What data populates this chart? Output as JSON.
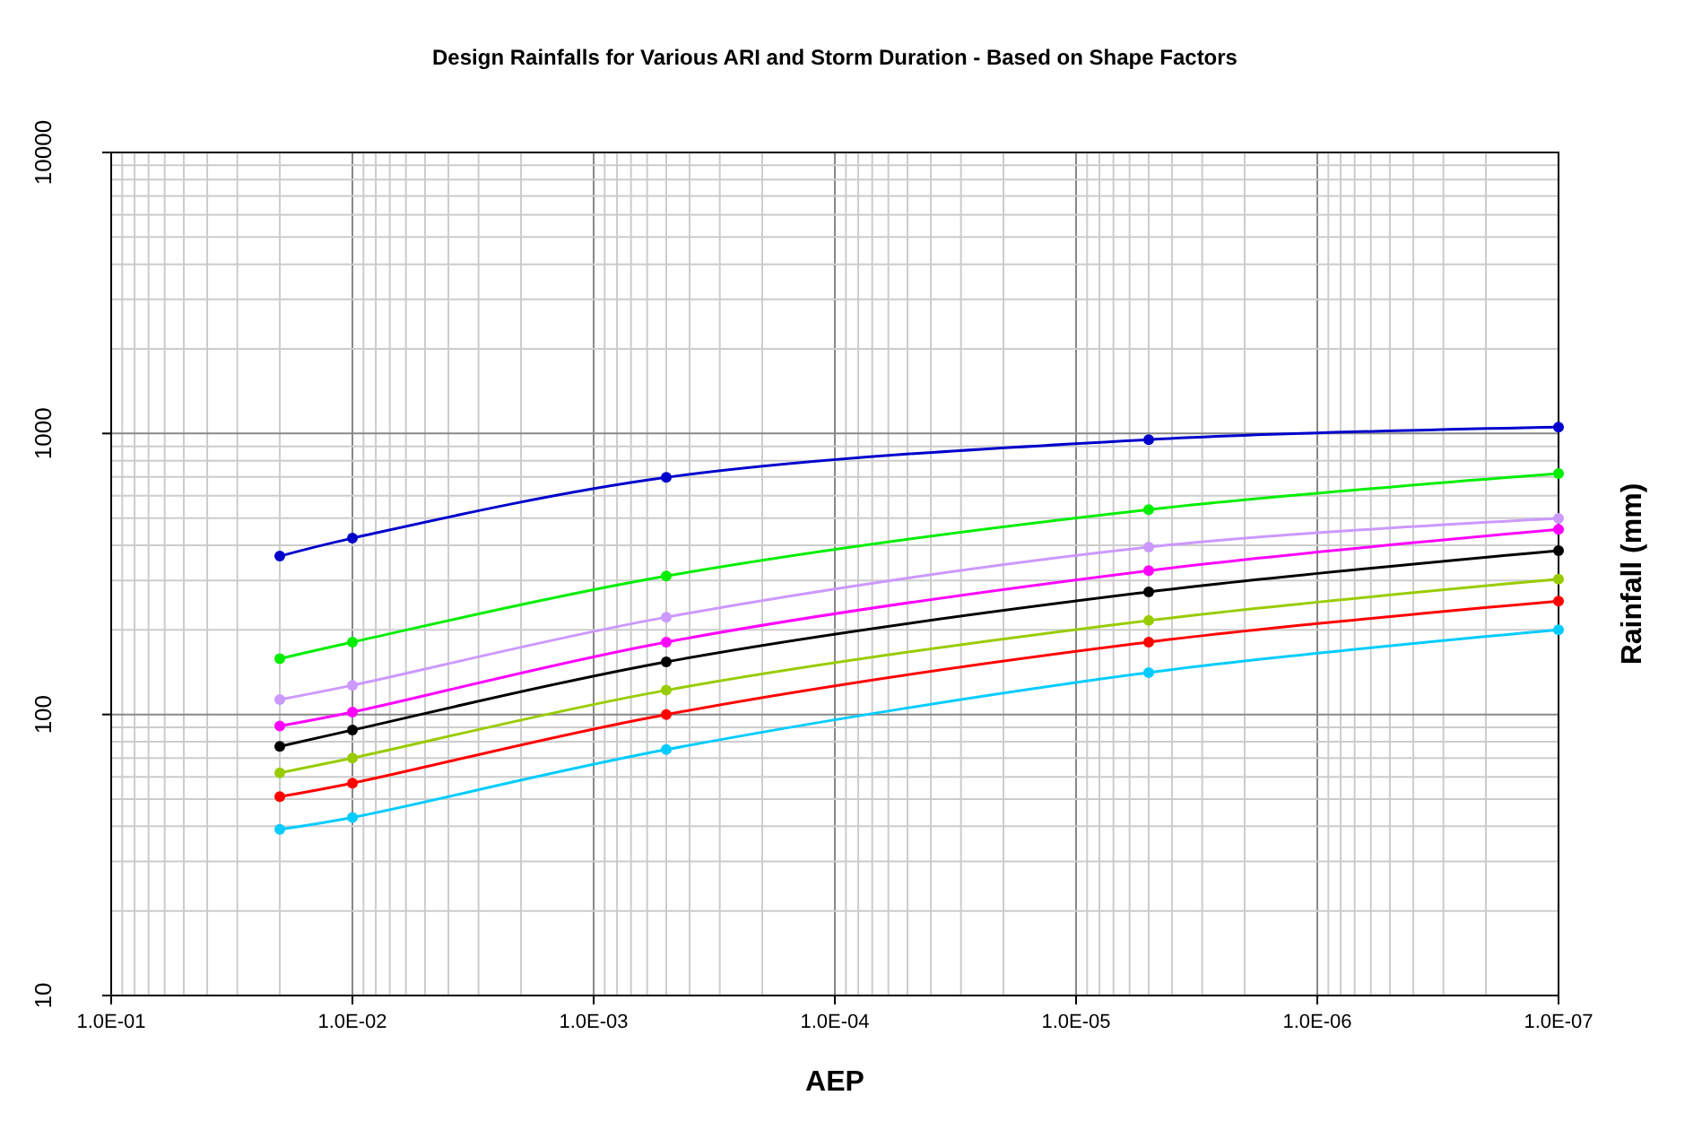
{
  "chart_data": {
    "type": "line",
    "title": "Design Rainfalls for Various ARI and Storm Duration - Based on Shape Factors",
    "xlabel": "AEP",
    "ylabel": "Rainfall (mm)",
    "log": "xy",
    "grid": true,
    "marker": "circle",
    "line_style": "solid",
    "x": [
      0.02,
      0.01,
      0.0005,
      5e-06,
      1e-07
    ],
    "xlim": [
      0.1,
      1e-07
    ],
    "ylim": [
      10,
      10000
    ],
    "xticks": [
      {
        "value": 0.1,
        "label": "1.0E-01"
      },
      {
        "value": 0.01,
        "label": "1.0E-02"
      },
      {
        "value": 0.001,
        "label": "1.0E-03"
      },
      {
        "value": 0.0001,
        "label": "1.0E-04"
      },
      {
        "value": 1e-05,
        "label": "1.0E-05"
      },
      {
        "value": 1e-06,
        "label": "1.0E-06"
      },
      {
        "value": 1e-07,
        "label": "1.0E-07"
      },
      {
        "value": 0.09,
        "label": null
      },
      {
        "value": 0.08,
        "label": null
      },
      {
        "value": 0.07,
        "label": null
      },
      {
        "value": 0.06,
        "label": null
      },
      {
        "value": 0.05,
        "label": null
      },
      {
        "value": 0.04,
        "label": null
      },
      {
        "value": 0.03,
        "label": null
      },
      {
        "value": 0.02,
        "label": null
      },
      {
        "value": 0.009,
        "label": null
      },
      {
        "value": 0.008,
        "label": null
      },
      {
        "value": 0.007,
        "label": null
      },
      {
        "value": 0.006,
        "label": null
      },
      {
        "value": 0.005,
        "label": null
      },
      {
        "value": 0.004,
        "label": null
      },
      {
        "value": 0.003,
        "label": null
      },
      {
        "value": 0.002,
        "label": null
      },
      {
        "value": 0.0009,
        "label": null
      },
      {
        "value": 0.0008,
        "label": null
      },
      {
        "value": 0.0007,
        "label": null
      },
      {
        "value": 0.0006,
        "label": null
      },
      {
        "value": 0.0005,
        "label": null
      },
      {
        "value": 0.0004,
        "label": null
      },
      {
        "value": 0.0003,
        "label": null
      },
      {
        "value": 0.0002,
        "label": null
      },
      {
        "value": 9e-05,
        "label": null
      },
      {
        "value": 8e-05,
        "label": null
      },
      {
        "value": 7e-05,
        "label": null
      },
      {
        "value": 6e-05,
        "label": null
      },
      {
        "value": 5e-05,
        "label": null
      },
      {
        "value": 4e-05,
        "label": null
      },
      {
        "value": 3e-05,
        "label": null
      },
      {
        "value": 2e-05,
        "label": null
      },
      {
        "value": 9e-06,
        "label": null
      },
      {
        "value": 8e-06,
        "label": null
      },
      {
        "value": 7e-06,
        "label": null
      },
      {
        "value": 6e-06,
        "label": null
      },
      {
        "value": 5e-06,
        "label": null
      },
      {
        "value": 4e-06,
        "label": null
      },
      {
        "value": 3e-06,
        "label": null
      },
      {
        "value": 2e-06,
        "label": null
      },
      {
        "value": 9e-07,
        "label": null
      },
      {
        "value": 8e-07,
        "label": null
      },
      {
        "value": 7e-07,
        "label": null
      },
      {
        "value": 6e-07,
        "label": null
      },
      {
        "value": 5e-07,
        "label": null
      },
      {
        "value": 4e-07,
        "label": null
      },
      {
        "value": 3e-07,
        "label": null
      },
      {
        "value": 2e-07,
        "label": null
      }
    ],
    "yticks": [
      10,
      100,
      1000,
      10000,
      {
        "value": 20,
        "label": null
      },
      {
        "value": 30,
        "label": null
      },
      {
        "value": 40,
        "label": null
      },
      {
        "value": 50,
        "label": null
      },
      {
        "value": 60,
        "label": null
      },
      {
        "value": 70,
        "label": null
      },
      {
        "value": 80,
        "label": null
      },
      {
        "value": 90,
        "label": null
      },
      {
        "value": 200,
        "label": null
      },
      {
        "value": 300,
        "label": null
      },
      {
        "value": 400,
        "label": null
      },
      {
        "value": 500,
        "label": null
      },
      {
        "value": 600,
        "label": null
      },
      {
        "value": 700,
        "label": null
      },
      {
        "value": 800,
        "label": null
      },
      {
        "value": 900,
        "label": null
      },
      {
        "value": 2000,
        "label": null
      },
      {
        "value": 3000,
        "label": null
      },
      {
        "value": 4000,
        "label": null
      },
      {
        "value": 5000,
        "label": null
      },
      {
        "value": 6000,
        "label": null
      },
      {
        "value": 7000,
        "label": null
      },
      {
        "value": 8000,
        "label": null
      },
      {
        "value": 9000,
        "label": null
      }
    ],
    "series": [
      {
        "color": "#0000cc",
        "values": [
          366,
          424,
          698,
          951,
          1054
        ]
      },
      {
        "color": "#00ee00",
        "values": [
          158,
          181,
          311,
          536,
          720
        ]
      },
      {
        "color": "#cc99ff",
        "values": [
          113,
          127,
          222,
          394,
          499
        ]
      },
      {
        "color": "#ff00ff",
        "values": [
          91,
          102,
          181,
          325,
          456
        ]
      },
      {
        "color": "#000000",
        "values": [
          77,
          88,
          154,
          273,
          383
        ]
      },
      {
        "color": "#99cc00",
        "values": [
          62,
          70,
          122,
          216,
          303
        ]
      },
      {
        "color": "#ff0000",
        "values": [
          51,
          57,
          100,
          181,
          253
        ]
      },
      {
        "color": "#00ccff",
        "values": [
          39,
          43,
          75,
          141,
          200
        ]
      }
    ]
  }
}
